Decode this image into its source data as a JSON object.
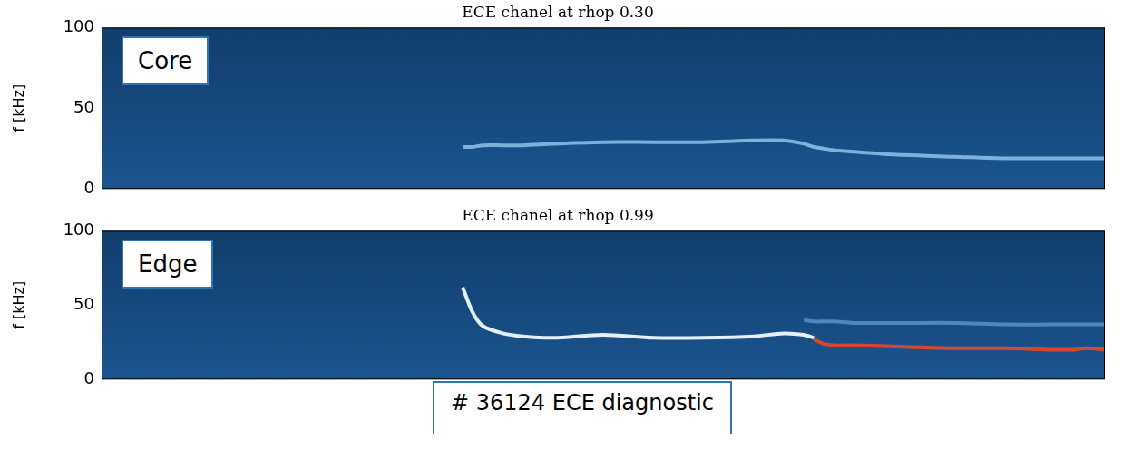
{
  "chart_data": [
    {
      "type": "line",
      "title": "ECE chanel at rhop 0.30",
      "y_label": "f [kHz]",
      "annotations": [
        "Core"
      ],
      "x": [
        36,
        37,
        38,
        40,
        42,
        45,
        50,
        55,
        60,
        65,
        68,
        70,
        71,
        72,
        73,
        75,
        80,
        85,
        90,
        95,
        97,
        98,
        100
      ],
      "series": [
        {
          "color": "#7fb0dc",
          "values": [
            26,
            26,
            27,
            27,
            27,
            28,
            29,
            29,
            29,
            30,
            30,
            28,
            26,
            25,
            24,
            23,
            21,
            20,
            19,
            19,
            19,
            19,
            19
          ]
        }
      ],
      "xlim": [
        0,
        100
      ],
      "ylim": [
        0,
        100
      ],
      "yticks": [
        0,
        50,
        100
      ],
      "grid": false,
      "tick_labels": "y"
    },
    {
      "type": "line",
      "title": "ECE chanel at rhop 0.99",
      "y_label": "f [kHz]",
      "annotations": [
        "Edge",
        "# 36124 ECE diagnostic"
      ],
      "x": [
        36,
        37,
        38,
        40,
        42,
        45,
        50,
        55,
        60,
        65,
        68,
        70,
        71,
        72,
        73,
        75,
        80,
        85,
        90,
        95,
        97,
        98,
        100
      ],
      "series": [
        {
          "color": "#4f87c0",
          "values": [
            null,
            null,
            null,
            null,
            null,
            null,
            null,
            null,
            null,
            null,
            null,
            40,
            39,
            39,
            39,
            38,
            38,
            38,
            37,
            37,
            37,
            37,
            37
          ]
        },
        {
          "color": "#e6eef7",
          "values": [
            62,
            45,
            36,
            31,
            29,
            28,
            30,
            28,
            28,
            29,
            31,
            30,
            28,
            null,
            null,
            null,
            null,
            null,
            null,
            null,
            null,
            null,
            null
          ]
        },
        {
          "color": "#d8462f",
          "values": [
            null,
            null,
            null,
            null,
            null,
            null,
            null,
            null,
            null,
            null,
            null,
            null,
            27,
            24,
            23,
            23,
            22,
            21,
            21,
            20,
            20,
            21,
            20
          ]
        }
      ],
      "xlim": [
        0,
        100
      ],
      "ylim": [
        0,
        100
      ],
      "yticks": [
        0,
        50,
        100
      ],
      "grid": false,
      "tick_labels": "y"
    }
  ]
}
